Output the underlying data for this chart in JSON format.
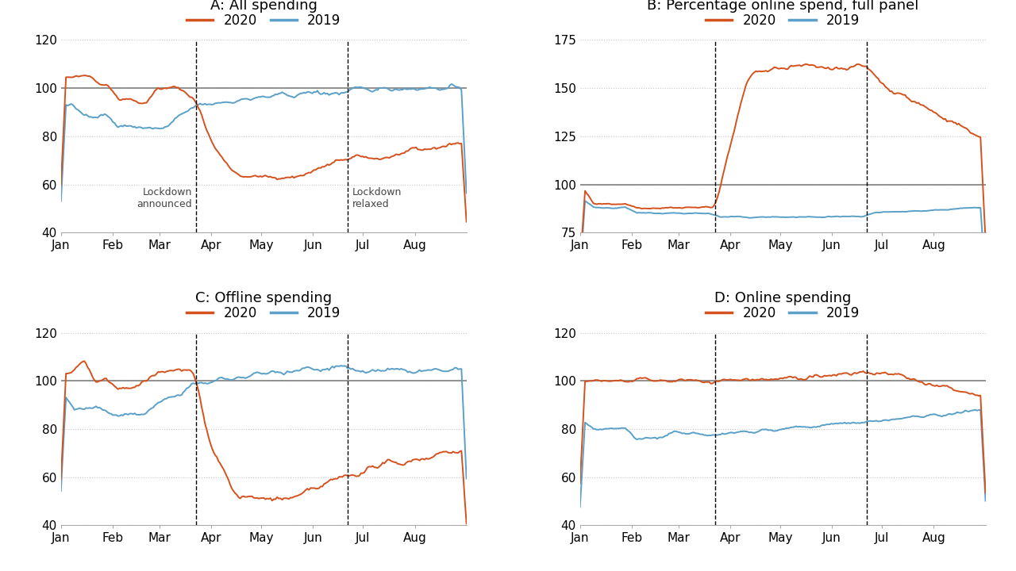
{
  "panels": [
    {
      "title": "A: All spending",
      "ylim": [
        40,
        120
      ],
      "yticks": [
        40,
        60,
        80,
        100,
        120
      ],
      "hline": 100,
      "show_annotations": true,
      "annotation1": "Lockdown\nannounced",
      "annotation2": "Lockdown\nrelaxed"
    },
    {
      "title": "B: Percentage online spend, full panel",
      "ylim": [
        75,
        175
      ],
      "yticks": [
        75,
        100,
        125,
        150,
        175
      ],
      "hline": 100,
      "show_annotations": false
    },
    {
      "title": "C: Offline spending",
      "ylim": [
        40,
        120
      ],
      "yticks": [
        40,
        60,
        80,
        100,
        120
      ],
      "hline": 100,
      "show_annotations": false
    },
    {
      "title": "D: Online spending",
      "ylim": [
        40,
        120
      ],
      "yticks": [
        40,
        60,
        80,
        100,
        120
      ],
      "hline": 100,
      "show_annotations": false
    }
  ],
  "color_2020": "#d4521e",
  "color_2019": "#5aa0c8",
  "hline_color": "#808080",
  "grid_color": "#c8c8c8",
  "vline_color": "#000000",
  "background_color": "#ffffff",
  "title_fontsize": 13,
  "tick_fontsize": 11,
  "legend_fontsize": 12,
  "annotation_fontsize": 9,
  "x_months": [
    "Jan",
    "Feb",
    "Mar",
    "Apr",
    "May",
    "Jun",
    "Jul",
    "Aug"
  ],
  "lockdown_announced_day": 81,
  "lockdown_relaxed_day": 172,
  "total_days": 243
}
